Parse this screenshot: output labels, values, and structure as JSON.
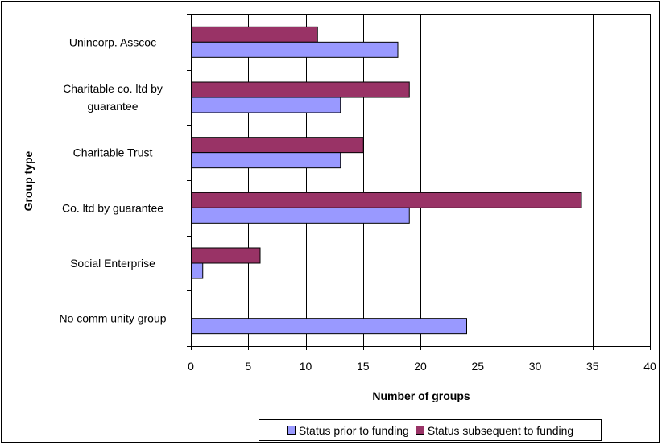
{
  "chart_data": {
    "type": "bar",
    "orientation": "horizontal",
    "title": "",
    "xlabel": "Number of groups",
    "ylabel": "Group type",
    "xlim": [
      0,
      40
    ],
    "x_ticks": [
      "0",
      "5",
      "10",
      "15",
      "20",
      "25",
      "30",
      "35",
      "40"
    ],
    "categories": [
      "Unincorp. Asscoc",
      "Charitable co. ltd by guarantee",
      "Charitable Trust",
      "Co. ltd by guarantee",
      "Social Enterprise",
      "No comm unity group"
    ],
    "series": [
      {
        "name": "Status prior to funding",
        "color": "#9999ff",
        "values": [
          18,
          13,
          13,
          19,
          1,
          24
        ]
      },
      {
        "name": "Status subsequent to funding",
        "color": "#993366",
        "values": [
          11,
          19,
          15,
          34,
          6,
          0
        ]
      }
    ],
    "grid": "vertical",
    "legend_position": "bottom"
  }
}
